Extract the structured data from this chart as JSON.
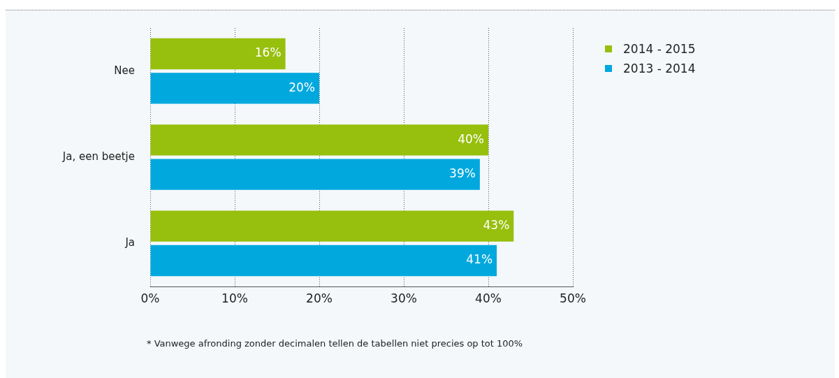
{
  "chart_data": {
    "type": "bar",
    "orientation": "horizontal",
    "categories": [
      "Nee",
      "Ja, een beetje",
      "Ja"
    ],
    "series": [
      {
        "name": "2014 - 2015",
        "color": "#97bf0d",
        "values": [
          16,
          40,
          43
        ],
        "value_labels": [
          "16%",
          "40%",
          "43%"
        ]
      },
      {
        "name": "2013 - 2014",
        "color": "#00a8de",
        "values": [
          20,
          39,
          41
        ],
        "value_labels": [
          "20%",
          "39%",
          "41%"
        ]
      }
    ],
    "xlim": [
      0,
      50
    ],
    "xticks": [
      {
        "value": 0,
        "label": "0%"
      },
      {
        "value": 10,
        "label": "10%"
      },
      {
        "value": 20,
        "label": "20%"
      },
      {
        "value": 30,
        "label": "30%"
      },
      {
        "value": 40,
        "label": "40%"
      },
      {
        "value": 50,
        "label": "50%"
      }
    ],
    "grid": "x",
    "legend": "right",
    "annotations": [
      "* Vanwege afronding zonder decimalen tellen de tabellen niet precies op tot 100%"
    ]
  }
}
